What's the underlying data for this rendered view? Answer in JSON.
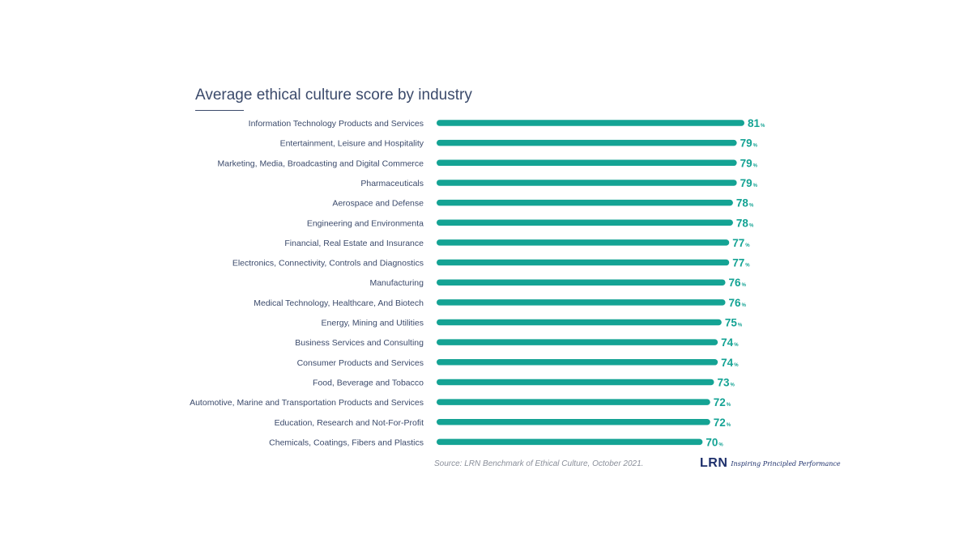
{
  "chart_data": {
    "type": "bar",
    "orientation": "horizontal",
    "title": "Average ethical culture score by industry",
    "categories": [
      "Information Technology Products and Services",
      "Entertainment, Leisure and Hospitality",
      "Marketing, Media, Broadcasting and Digital Commerce",
      "Pharmaceuticals",
      "Aerospace and Defense",
      "Engineering and Environmenta",
      "Financial, Real Estate and Insurance",
      "Electronics, Connectivity, Controls and Diagnostics",
      "Manufacturing",
      "Medical Technology, Healthcare, And Biotech",
      "Energy, Mining and Utilities",
      "Business Services and Consulting",
      "Consumer Products and Services",
      "Food, Beverage and Tobacco",
      "Automotive, Marine and Transportation Products and Services",
      "Education, Research and Not-For-Profit",
      "Chemicals, Coatings, Fibers and Plastics"
    ],
    "values": [
      81,
      79,
      79,
      79,
      78,
      78,
      77,
      77,
      76,
      76,
      75,
      74,
      74,
      73,
      72,
      72,
      70
    ],
    "value_suffix": "%",
    "bar_color": "#14a394",
    "label_color": "#3b4a6b",
    "source": "Source: LRN Benchmark of Ethical Culture, October 2021."
  },
  "logo": {
    "mark": "LRN",
    "tagline": "Inspiring Principled Performance"
  }
}
